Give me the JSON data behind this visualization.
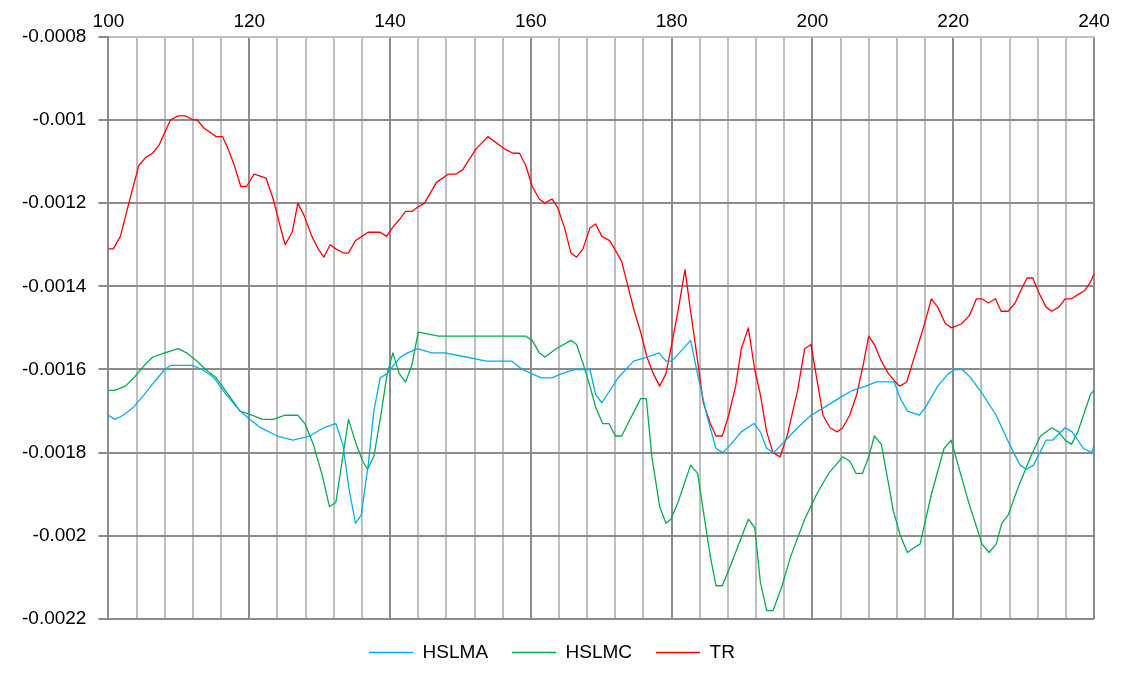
{
  "chart_data": {
    "type": "line",
    "xlim": [
      100,
      240
    ],
    "ylim": [
      -0.0022,
      -0.0008
    ],
    "xticks": [
      100,
      {
        "value": 104,
        "label": null
      },
      {
        "value": 108,
        "label": null
      },
      {
        "value": 112,
        "label": null
      },
      {
        "value": 116,
        "label": null
      },
      120,
      {
        "value": 124,
        "label": null
      },
      {
        "value": 128,
        "label": null
      },
      {
        "value": 132,
        "label": null
      },
      {
        "value": 136,
        "label": null
      },
      140,
      {
        "value": 144,
        "label": null
      },
      {
        "value": 148,
        "label": null
      },
      {
        "value": 152,
        "label": null
      },
      {
        "value": 156,
        "label": null
      },
      160,
      {
        "value": 164,
        "label": null
      },
      {
        "value": 168,
        "label": null
      },
      {
        "value": 172,
        "label": null
      },
      {
        "value": 176,
        "label": null
      },
      180,
      {
        "value": 184,
        "label": null
      },
      {
        "value": 188,
        "label": null
      },
      {
        "value": 192,
        "label": null
      },
      {
        "value": 196,
        "label": null
      },
      200,
      {
        "value": 204,
        "label": null
      },
      {
        "value": 208,
        "label": null
      },
      {
        "value": 212,
        "label": null
      },
      {
        "value": 216,
        "label": null
      },
      220,
      {
        "value": 224,
        "label": null
      },
      {
        "value": 228,
        "label": null
      },
      {
        "value": 232,
        "label": null
      },
      {
        "value": 236,
        "label": null
      },
      240
    ],
    "yticks": [
      -0.0022,
      -0.002,
      -0.0018,
      -0.0016,
      -0.0014,
      -0.0012,
      -0.001,
      -0.0008
    ],
    "grid": true,
    "legend": "bottom",
    "marker": "none",
    "line_style": "solid",
    "series": [
      {
        "name": "HSLMA",
        "color": "#00b0f0",
        "x": [
          100,
          100.9,
          102.1,
          103.6,
          105.1,
          106.5,
          108,
          108.9,
          111.9,
          113.3,
          115,
          116.7,
          118.7,
          120.1,
          121.6,
          124,
          126.2,
          128.6,
          130.6,
          132.3,
          133.3,
          134.2,
          135.1,
          135.9,
          136.9,
          137.7,
          138.6,
          139.6,
          140.5,
          141.5,
          142.5,
          143.9,
          145.9,
          147.8,
          150.8,
          153.7,
          157.3,
          158.8,
          160.1,
          161.5,
          163,
          164.4,
          166.3,
          168.4,
          169.2,
          170.1,
          172.4,
          174.6,
          176.5,
          178.2,
          179.2,
          180,
          181.1,
          182.7,
          183.8,
          185,
          186.3,
          187.3,
          188.4,
          189.9,
          191.7,
          192.6,
          193.5,
          194.5,
          196.2,
          197.9,
          199.8,
          201.8,
          203.7,
          205.7,
          207.6,
          209.1,
          210.8,
          211.6,
          212.5,
          213.5,
          215.2,
          216.1,
          217.8,
          219.3,
          220.3,
          221.3,
          222.5,
          224.2,
          226.1,
          228,
          229.5,
          230.4,
          231.4,
          233.2,
          234.1,
          235.9,
          236.9,
          238.5,
          239.7,
          240
        ],
        "values": [
          -0.00171,
          -0.00172,
          -0.00171,
          -0.00169,
          -0.00166,
          -0.00163,
          -0.0016,
          -0.00159,
          -0.00159,
          -0.0016,
          -0.00162,
          -0.00166,
          -0.0017,
          -0.00172,
          -0.00174,
          -0.00176,
          -0.00177,
          -0.00176,
          -0.00174,
          -0.00173,
          -0.00178,
          -0.00189,
          -0.00197,
          -0.00195,
          -0.00183,
          -0.0017,
          -0.00162,
          -0.00161,
          -0.00159,
          -0.00157,
          -0.00156,
          -0.00155,
          -0.00156,
          -0.00156,
          -0.00157,
          -0.00158,
          -0.00158,
          -0.0016,
          -0.00161,
          -0.00162,
          -0.00162,
          -0.00161,
          -0.0016,
          -0.0016,
          -0.00166,
          -0.00168,
          -0.00162,
          -0.00158,
          -0.00157,
          -0.00156,
          -0.00158,
          -0.00158,
          -0.00156,
          -0.00153,
          -0.00162,
          -0.00171,
          -0.00179,
          -0.0018,
          -0.00178,
          -0.00175,
          -0.00173,
          -0.00175,
          -0.00179,
          -0.0018,
          -0.00177,
          -0.00174,
          -0.00171,
          -0.00169,
          -0.00167,
          -0.00165,
          -0.00164,
          -0.00163,
          -0.00163,
          -0.00163,
          -0.00167,
          -0.0017,
          -0.00171,
          -0.00169,
          -0.00164,
          -0.00161,
          -0.0016,
          -0.0016,
          -0.00162,
          -0.00166,
          -0.00171,
          -0.00178,
          -0.00183,
          -0.00184,
          -0.00183,
          -0.00177,
          -0.00177,
          -0.00174,
          -0.00175,
          -0.00179,
          -0.0018,
          -0.00178
        ]
      },
      {
        "name": "HSLMC",
        "color": "#00b050",
        "x": [
          100,
          100.9,
          102.4,
          103.6,
          105.1,
          106.3,
          108,
          109.9,
          111.1,
          112.6,
          113.8,
          115.3,
          117,
          118.7,
          120.4,
          121.9,
          123.4,
          125.1,
          126.9,
          127.9,
          129.1,
          130.3,
          131.4,
          132.3,
          133.2,
          134.1,
          135.2,
          136.1,
          136.8,
          137.7,
          138.6,
          139.6,
          140.4,
          141.3,
          142.2,
          143.1,
          144,
          146.9,
          149.3,
          153.2,
          156.1,
          159.3,
          160.2,
          161.2,
          162,
          163.6,
          165.7,
          166.5,
          167.5,
          168.4,
          169.2,
          170.2,
          171.1,
          172,
          172.9,
          173.8,
          175.6,
          176.4,
          177.2,
          178.3,
          179.2,
          179.9,
          180.9,
          182.7,
          183.7,
          184.5,
          185.5,
          186.3,
          187.2,
          188.4,
          190.9,
          191.8,
          192.6,
          193.5,
          194.4,
          195.7,
          196.9,
          198.9,
          200.6,
          202.3,
          204.3,
          205.3,
          206.2,
          207.1,
          208,
          208.8,
          209.8,
          211.5,
          212.5,
          213.5,
          214.3,
          215.3,
          216.9,
          218.7,
          219.7,
          220.7,
          222.2,
          224.1,
          225.1,
          226.1,
          226.9,
          227.8,
          229.3,
          231,
          232.4,
          234,
          235,
          235.9,
          236.8,
          237.7,
          238.5,
          239.5,
          240
        ],
        "values": [
          -0.00165,
          -0.00165,
          -0.00164,
          -0.00162,
          -0.00159,
          -0.00157,
          -0.00156,
          -0.00155,
          -0.00156,
          -0.00158,
          -0.0016,
          -0.00162,
          -0.00166,
          -0.0017,
          -0.00171,
          -0.00172,
          -0.00172,
          -0.00171,
          -0.00171,
          -0.00173,
          -0.00178,
          -0.00185,
          -0.00193,
          -0.00192,
          -0.00182,
          -0.00172,
          -0.00178,
          -0.00182,
          -0.00184,
          -0.00181,
          -0.00172,
          -0.00161,
          -0.00156,
          -0.00161,
          -0.00163,
          -0.00159,
          -0.00151,
          -0.00152,
          -0.00152,
          -0.00152,
          -0.00152,
          -0.00152,
          -0.00153,
          -0.00156,
          -0.00157,
          -0.00155,
          -0.00153,
          -0.00154,
          -0.00159,
          -0.00164,
          -0.00169,
          -0.00173,
          -0.00173,
          -0.00176,
          -0.00176,
          -0.00173,
          -0.00167,
          -0.00167,
          -0.00181,
          -0.00193,
          -0.00197,
          -0.00196,
          -0.00192,
          -0.00183,
          -0.00185,
          -0.00194,
          -0.00205,
          -0.00212,
          -0.00212,
          -0.00207,
          -0.00196,
          -0.00198,
          -0.00211,
          -0.00218,
          -0.00218,
          -0.00212,
          -0.00205,
          -0.00196,
          -0.0019,
          -0.00185,
          -0.00181,
          -0.00182,
          -0.00185,
          -0.00185,
          -0.00181,
          -0.00176,
          -0.00178,
          -0.00194,
          -0.002,
          -0.00204,
          -0.00203,
          -0.00202,
          -0.0019,
          -0.00179,
          -0.00177,
          -0.00183,
          -0.00192,
          -0.00202,
          -0.00204,
          -0.00202,
          -0.00197,
          -0.00195,
          -0.00188,
          -0.00181,
          -0.00176,
          -0.00174,
          -0.00175,
          -0.00177,
          -0.00178,
          -0.00175,
          -0.00171,
          -0.00166,
          -0.00165
        ]
      },
      {
        "name": "TR",
        "color": "#ff0000",
        "x": [
          100,
          100.7,
          101.7,
          102.9,
          104.3,
          105.3,
          106.3,
          107.2,
          108.8,
          109.9,
          110.9,
          112.1,
          112.6,
          113.6,
          115.3,
          116.2,
          117,
          117.9,
          118.8,
          119.6,
          120.7,
          122.4,
          123.4,
          124.3,
          125.1,
          126.1,
          126.9,
          127.8,
          128.9,
          129.8,
          130.6,
          131.5,
          132.3,
          133.4,
          134.1,
          135.1,
          136,
          136.9,
          137.7,
          138.6,
          139.5,
          140.3,
          141.3,
          142.2,
          143.1,
          143.9,
          144.9,
          146.6,
          148.3,
          149.4,
          150.3,
          152.2,
          153.9,
          156.3,
          157.5,
          158.4,
          159.3,
          160.2,
          161.2,
          162,
          163,
          163.8,
          164.8,
          165.7,
          166.5,
          167.4,
          168.4,
          169.2,
          170.1,
          171.2,
          171.9,
          172.9,
          173.8,
          174.7,
          175.6,
          176.5,
          177.4,
          178.3,
          179.2,
          180,
          180.9,
          181.9,
          182.7,
          183.7,
          184.5,
          185.5,
          186.3,
          187.2,
          188.1,
          189.1,
          189.9,
          190.9,
          191.8,
          192.6,
          193.5,
          194.4,
          195.4,
          196.4,
          197.9,
          198.9,
          199.8,
          200.6,
          201.5,
          202.5,
          203.5,
          204.3,
          205.3,
          206.3,
          207.2,
          208,
          208.8,
          209.8,
          210.8,
          211.8,
          212.4,
          213.4,
          214.3,
          215.4,
          216.1,
          216.9,
          217.8,
          218.9,
          219.8,
          221.2,
          222.3,
          223.3,
          224.1,
          225,
          226,
          226.8,
          227.8,
          228.8,
          229.6,
          230.5,
          231.3,
          232.3,
          233.2,
          234,
          235,
          235.9,
          236.8,
          237.7,
          238.7,
          239.5,
          240
        ],
        "values": [
          -0.00131,
          -0.00131,
          -0.00128,
          -0.0012,
          -0.00111,
          -0.00109,
          -0.00108,
          -0.00106,
          -0.001,
          -0.00099,
          -0.00099,
          -0.001,
          -0.001,
          -0.00102,
          -0.00104,
          -0.00104,
          -0.00107,
          -0.00111,
          -0.00116,
          -0.00116,
          -0.00113,
          -0.00114,
          -0.00119,
          -0.00125,
          -0.0013,
          -0.00127,
          -0.0012,
          -0.00123,
          -0.00128,
          -0.00131,
          -0.00133,
          -0.0013,
          -0.00131,
          -0.00132,
          -0.00132,
          -0.00129,
          -0.00128,
          -0.00127,
          -0.00127,
          -0.00127,
          -0.00128,
          -0.00126,
          -0.00124,
          -0.00122,
          -0.00122,
          -0.00121,
          -0.0012,
          -0.00115,
          -0.00113,
          -0.00113,
          -0.00112,
          -0.00107,
          -0.00104,
          -0.00107,
          -0.00108,
          -0.00108,
          -0.00111,
          -0.00116,
          -0.00119,
          -0.0012,
          -0.00119,
          -0.00121,
          -0.00126,
          -0.00132,
          -0.00133,
          -0.00131,
          -0.00126,
          -0.00125,
          -0.00128,
          -0.00129,
          -0.00131,
          -0.00134,
          -0.0014,
          -0.00146,
          -0.00151,
          -0.00157,
          -0.00161,
          -0.00164,
          -0.00161,
          -0.00154,
          -0.00146,
          -0.00136,
          -0.00146,
          -0.00158,
          -0.00168,
          -0.00173,
          -0.00176,
          -0.00176,
          -0.00171,
          -0.00164,
          -0.00155,
          -0.0015,
          -0.0016,
          -0.00166,
          -0.00175,
          -0.0018,
          -0.00181,
          -0.00176,
          -0.00165,
          -0.00155,
          -0.00154,
          -0.00162,
          -0.00171,
          -0.00174,
          -0.00175,
          -0.00174,
          -0.00171,
          -0.00166,
          -0.00159,
          -0.00152,
          -0.00154,
          -0.00158,
          -0.00161,
          -0.00163,
          -0.00164,
          -0.00163,
          -0.00158,
          -0.00152,
          -0.00148,
          -0.00143,
          -0.00145,
          -0.00149,
          -0.0015,
          -0.00149,
          -0.00147,
          -0.00143,
          -0.00143,
          -0.00144,
          -0.00143,
          -0.00146,
          -0.00146,
          -0.00144,
          -0.00141,
          -0.00138,
          -0.00138,
          -0.00142,
          -0.00145,
          -0.00146,
          -0.00145,
          -0.00143,
          -0.00143,
          -0.00142,
          -0.00141,
          -0.00139,
          -0.00137
        ]
      }
    ]
  }
}
